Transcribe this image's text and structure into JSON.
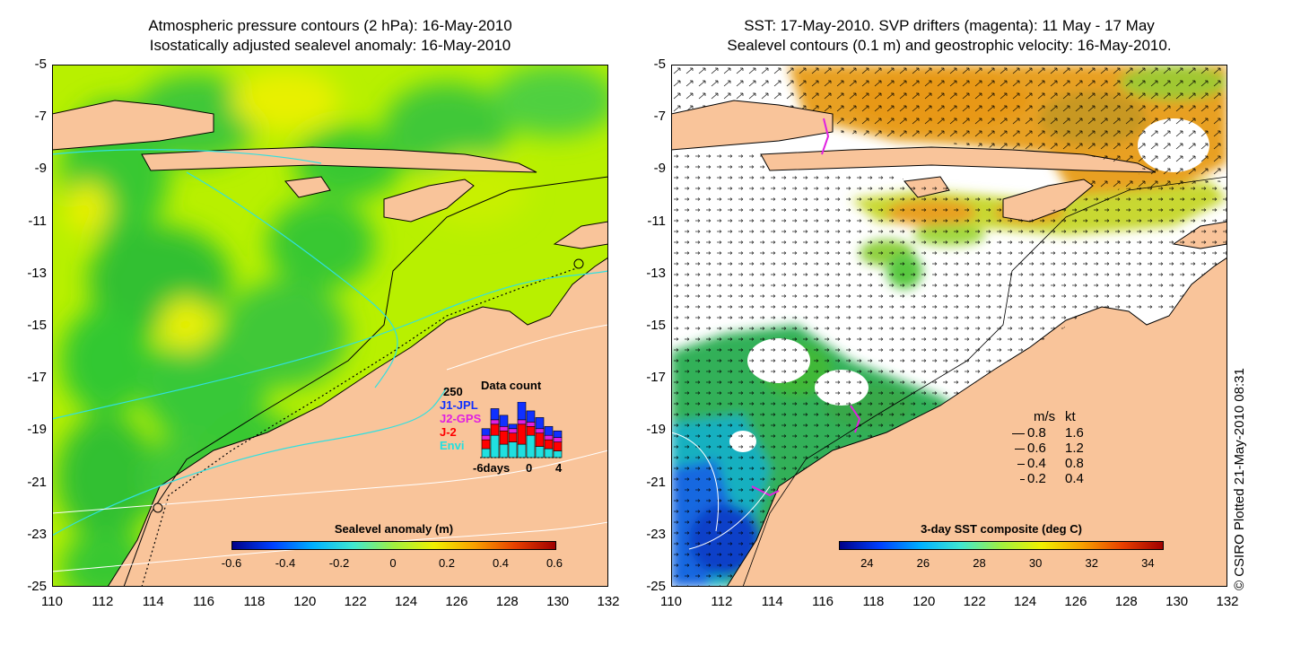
{
  "left_panel": {
    "title_line1": "Atmospheric pressure contours (2 hPa): 16-May-2010",
    "title_line2": "Isostatically adjusted sealevel anomaly: 16-May-2010",
    "colorbar": {
      "title": "Sealevel anomaly (m)",
      "ticks": [
        "-0.6",
        "-0.4",
        "-0.2",
        "0",
        "0.2",
        "0.4",
        "0.6"
      ],
      "range": [
        -0.6,
        0.6
      ]
    },
    "histogram": {
      "title": "Data count",
      "ymax_label": "250",
      "x_start_label": "-6days",
      "x_mid_label": "0",
      "x_end_label": "4",
      "series": [
        {
          "name": "J1-JPL",
          "color": "#1030ff"
        },
        {
          "name": "J2-GPS",
          "color": "#e020e0"
        },
        {
          "name": "J-2",
          "color": "#ff0000"
        },
        {
          "name": "Envi",
          "color": "#20e0e0"
        }
      ],
      "bars": [
        {
          "day": -5,
          "Envi": 40,
          "J-2": 40,
          "J2-GPS": 20,
          "J1-JPL": 30
        },
        {
          "day": -4,
          "Envi": 100,
          "J-2": 50,
          "J2-GPS": 20,
          "J1-JPL": 50
        },
        {
          "day": -3,
          "Envi": 60,
          "J-2": 60,
          "J2-GPS": 20,
          "J1-JPL": 50
        },
        {
          "day": -2,
          "Envi": 70,
          "J-2": 40,
          "J2-GPS": 20,
          "J1-JPL": 20
        },
        {
          "day": -1,
          "Envi": 60,
          "J-2": 90,
          "J2-GPS": 20,
          "J1-JPL": 80
        },
        {
          "day": 0,
          "Envi": 100,
          "J-2": 40,
          "J2-GPS": 20,
          "J1-JPL": 50
        },
        {
          "day": 1,
          "Envi": 50,
          "J-2": 60,
          "J2-GPS": 20,
          "J1-JPL": 50
        },
        {
          "day": 2,
          "Envi": 40,
          "J-2": 40,
          "J2-GPS": 20,
          "J1-JPL": 40
        },
        {
          "day": 3,
          "Envi": 30,
          "J-2": 40,
          "J2-GPS": 20,
          "J1-JPL": 30
        }
      ]
    }
  },
  "right_panel": {
    "title_line1": "SST: 17-May-2010. SVP drifters (magenta): 11 May - 17 May",
    "title_line2": "Sealevel contours (0.1 m) and geostrophic velocity: 16-May-2010.",
    "colorbar": {
      "title": "3-day SST composite (deg C)",
      "ticks": [
        "24",
        "26",
        "28",
        "30",
        "32",
        "34"
      ],
      "range": [
        23,
        34.5
      ]
    },
    "speed_legend": {
      "header_ms": "m/s",
      "header_kt": "kt",
      "rows": [
        {
          "ms": "0.8",
          "kt": "1.6"
        },
        {
          "ms": "0.6",
          "kt": "1.2"
        },
        {
          "ms": "0.4",
          "kt": "0.8"
        },
        {
          "ms": "0.2",
          "kt": "0.4"
        }
      ]
    }
  },
  "axes": {
    "x_ticks": [
      "110",
      "112",
      "114",
      "116",
      "118",
      "120",
      "122",
      "124",
      "126",
      "128",
      "130",
      "132"
    ],
    "y_ticks": [
      "-5",
      "-7",
      "-9",
      "-11",
      "-13",
      "-15",
      "-17",
      "-19",
      "-21",
      "-23",
      "-25"
    ],
    "lon_range": [
      110,
      132
    ],
    "lat_range": [
      -25,
      -5
    ]
  },
  "credit": "© CSIRO Plotted 21-May-2010 08:31",
  "colors": {
    "land": "#f9c49a",
    "sla_base": "#b8f000",
    "sla_low": "#38c830",
    "sla_high": "#e8f000",
    "sst_cold": "#1848d8",
    "sst_mid": "#30b848",
    "sst_warm": "#e89818",
    "cloud": "#ffffff",
    "pressure_contour": "#30e0e0",
    "drifter": "#e020e0"
  }
}
